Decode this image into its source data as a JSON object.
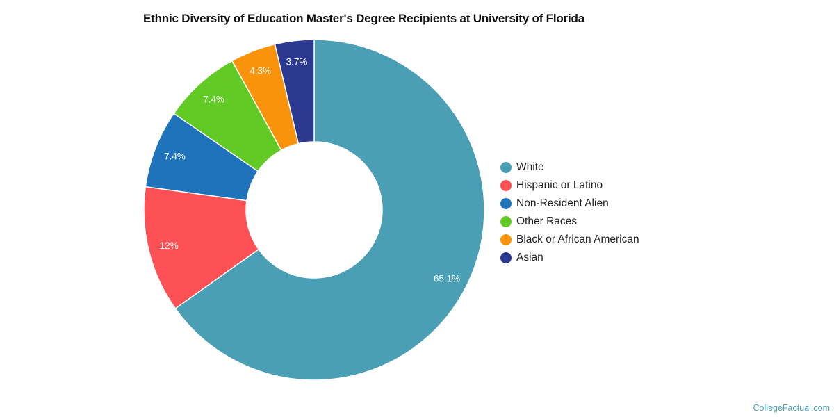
{
  "title": "Ethnic Diversity of Education Master's Degree Recipients at University of Florida",
  "credit": "CollegeFactual.com",
  "chart_data": {
    "type": "pie",
    "subtype": "donut",
    "title": "Ethnic Diversity of Education Master's Degree Recipients at University of Florida",
    "categories": [
      "White",
      "Hispanic or Latino",
      "Non-Resident Alien",
      "Other Races",
      "Black or African American",
      "Asian"
    ],
    "values": [
      65.1,
      12,
      7.4,
      7.4,
      4.3,
      3.7
    ],
    "labels": [
      "65.1%",
      "12%",
      "7.4%",
      "7.4%",
      "4.3%",
      "3.7%"
    ],
    "colors": [
      "#4a9fb5",
      "#fe5155",
      "#1f73ba",
      "#62ca24",
      "#f8930b",
      "#2b3990"
    ],
    "legend_position": "right",
    "start_angle": "12 o'clock, clockwise"
  },
  "legend": [
    {
      "label": "White",
      "color": "#4a9fb5"
    },
    {
      "label": "Hispanic or Latino",
      "color": "#fe5155"
    },
    {
      "label": "Non-Resident Alien",
      "color": "#1f73ba"
    },
    {
      "label": "Other Races",
      "color": "#62ca24"
    },
    {
      "label": "Black or African American",
      "color": "#f8930b"
    },
    {
      "label": "Asian",
      "color": "#2b3990"
    }
  ]
}
